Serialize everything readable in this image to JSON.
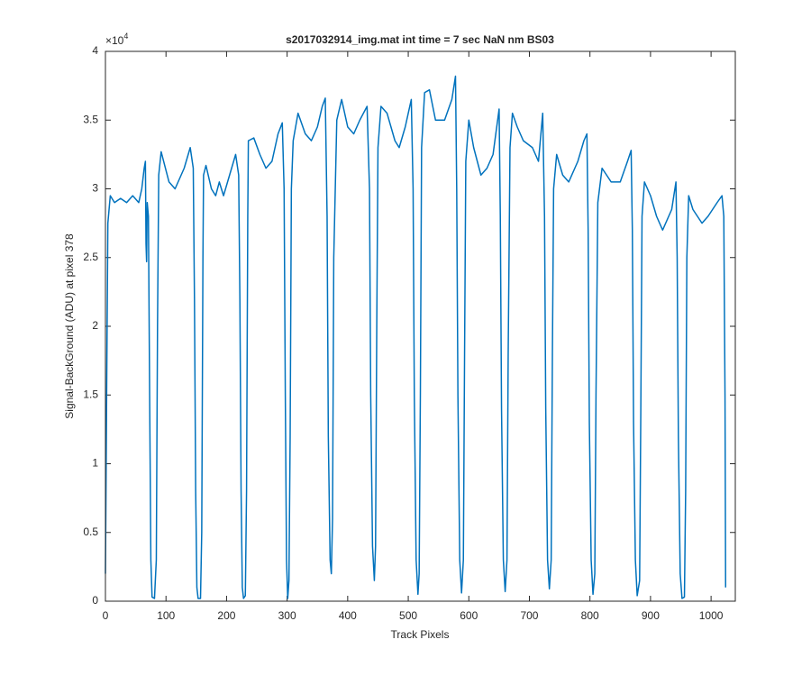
{
  "chart_data": {
    "type": "line",
    "title": "s2017032914_img.mat int time = 7 sec  NaN nm BS03",
    "x_label": "Track Pixels",
    "y_label": "Signal-BackGround (ADU) at pixel 378",
    "y_exponent": {
      "base": "×10",
      "power": "4"
    },
    "xlim": [
      0,
      1040
    ],
    "xticks": [
      0,
      100,
      200,
      300,
      400,
      500,
      600,
      700,
      800,
      900,
      1000
    ],
    "ylim": [
      0,
      40000
    ],
    "yticks": [
      0,
      {
        "value": 5000,
        "label": "0.5"
      },
      {
        "value": 10000,
        "label": "1"
      },
      {
        "value": 15000,
        "label": "1.5"
      },
      {
        "value": 20000,
        "label": "2"
      },
      {
        "value": 25000,
        "label": "2.5"
      },
      {
        "value": 30000,
        "label": "3"
      },
      {
        "value": 35000,
        "label": "3.5"
      },
      {
        "value": 40000,
        "label": "4"
      }
    ],
    "grid": false,
    "series": [
      {
        "color": "#0072bd",
        "x": [
          0,
          2,
          4,
          8,
          15,
          25,
          35,
          45,
          55,
          60,
          64,
          66,
          67,
          68,
          69,
          71,
          73,
          75,
          77,
          81,
          84,
          86,
          88,
          92,
          105,
          115,
          130,
          140,
          145,
          147,
          149,
          151,
          153,
          157,
          159,
          161,
          162,
          166,
          175,
          182,
          188,
          195,
          205,
          215,
          220,
          222,
          224,
          226,
          228,
          231,
          233,
          235,
          236,
          245,
          255,
          265,
          275,
          285,
          292,
          295,
          297,
          299,
          301,
          303,
          305,
          307,
          310,
          318,
          330,
          340,
          350,
          358,
          363,
          366,
          368,
          371,
          373,
          375,
          377,
          382,
          390,
          400,
          410,
          420,
          432,
          436,
          438,
          441,
          444,
          446,
          448,
          450,
          455,
          465,
          478,
          485,
          495,
          505,
          508,
          510,
          513,
          516,
          518,
          520,
          522,
          527,
          535,
          545,
          560,
          572,
          578,
          580,
          582,
          585,
          588,
          591,
          593,
          595,
          600,
          608,
          620,
          630,
          640,
          650,
          652,
          654,
          657,
          660,
          663,
          665,
          668,
          672,
          680,
          690,
          705,
          715,
          722,
          725,
          727,
          730,
          733,
          736,
          738,
          740,
          745,
          755,
          765,
          780,
          790,
          795,
          797,
          799,
          802,
          805,
          808,
          810,
          813,
          820,
          835,
          850,
          862,
          868,
          870,
          872,
          875,
          878,
          882,
          884,
          886,
          890,
          900,
          910,
          920,
          935,
          942,
          944,
          946,
          949,
          952,
          956,
          958,
          960,
          963,
          970,
          985,
          995,
          1010,
          1018,
          1021,
          1023,
          1024
        ],
        "values": [
          2000,
          15000,
          27500,
          29500,
          29000,
          29300,
          29000,
          29500,
          29000,
          30000,
          31500,
          32000,
          26000,
          24700,
          29000,
          28000,
          15000,
          3000,
          300,
          200,
          3000,
          20000,
          31000,
          32700,
          30500,
          30000,
          31500,
          33000,
          31500,
          22000,
          8000,
          1000,
          200,
          200,
          5000,
          25000,
          31000,
          31700,
          30000,
          29500,
          30500,
          29500,
          31000,
          32500,
          31000,
          22000,
          8000,
          1000,
          200,
          400,
          8000,
          28000,
          33500,
          33700,
          32500,
          31500,
          32000,
          34000,
          34800,
          30000,
          15000,
          3000,
          200,
          1500,
          12000,
          30000,
          33500,
          35500,
          34000,
          33500,
          34500,
          36000,
          36600,
          28000,
          12000,
          3000,
          2000,
          6000,
          25000,
          35000,
          36500,
          34500,
          34000,
          35000,
          36000,
          30000,
          15000,
          4000,
          1500,
          4000,
          20000,
          33000,
          36000,
          35500,
          33500,
          33000,
          34500,
          36500,
          30000,
          15000,
          3000,
          500,
          2000,
          15000,
          33000,
          37000,
          37200,
          35000,
          35000,
          36500,
          38200,
          30000,
          15000,
          3000,
          600,
          3000,
          18000,
          32000,
          35000,
          33000,
          31000,
          31500,
          32500,
          35800,
          28000,
          14000,
          3000,
          700,
          3000,
          18000,
          33000,
          35500,
          34500,
          33500,
          33000,
          32000,
          35500,
          28000,
          14000,
          3000,
          900,
          3000,
          18000,
          30000,
          32500,
          31000,
          30500,
          32000,
          33500,
          34000,
          27000,
          13000,
          3000,
          500,
          2000,
          15000,
          29000,
          31500,
          30500,
          30500,
          32000,
          32800,
          27000,
          13000,
          3000,
          400,
          1500,
          14000,
          28000,
          30500,
          29500,
          28000,
          27000,
          28500,
          30500,
          25000,
          12000,
          2000,
          200,
          300,
          8000,
          25000,
          29500,
          28500,
          27500,
          28000,
          29000,
          29500,
          28000,
          15000,
          1000
        ]
      }
    ]
  }
}
